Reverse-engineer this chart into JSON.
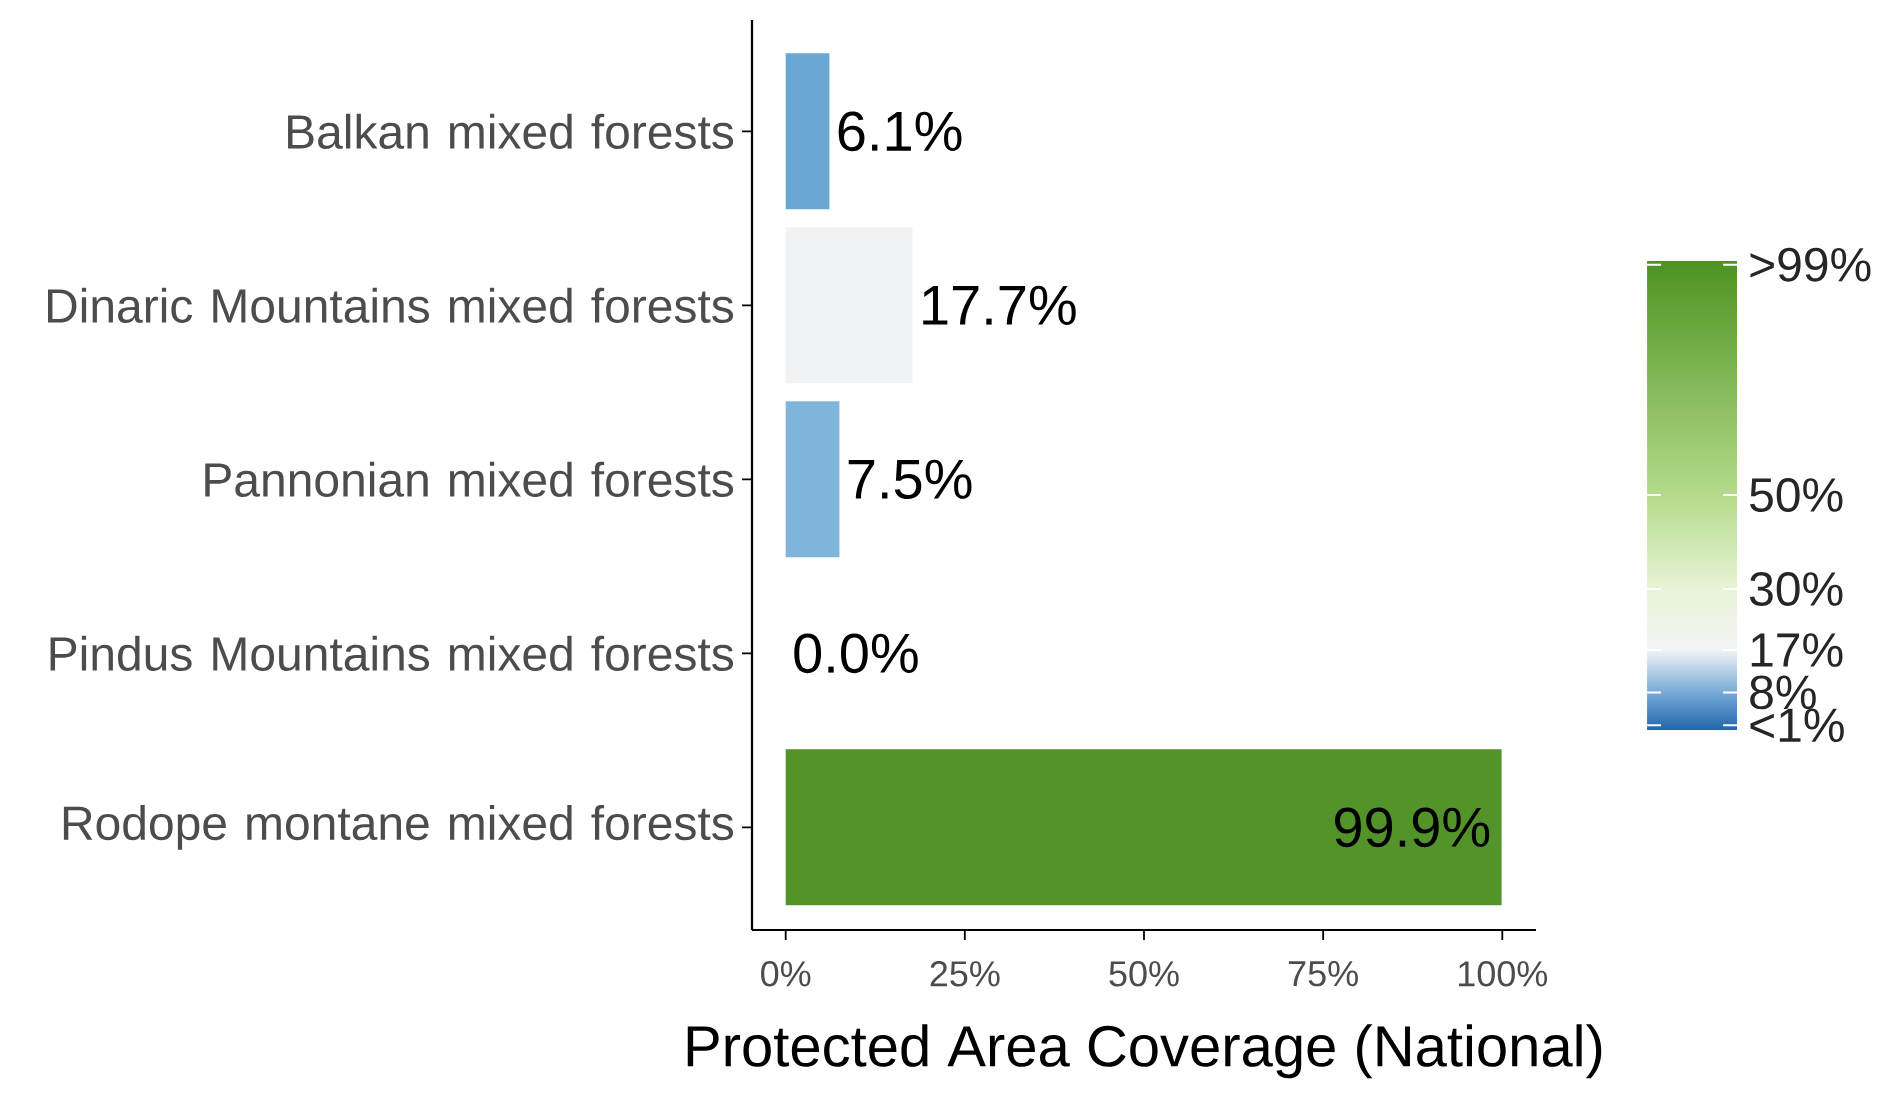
{
  "chart_data": {
    "type": "bar",
    "orientation": "horizontal",
    "xlabel": "Protected Area Coverage (National)",
    "categories": [
      "Balkan mixed forests",
      "Dinaric Mountains mixed forests",
      "Pannonian mixed forests",
      "Pindus Mountains mixed forests",
      "Rodope montane mixed forests"
    ],
    "values": [
      6.1,
      17.7,
      7.5,
      0.0,
      99.9
    ],
    "value_labels": [
      "6.1%",
      "17.7%",
      "7.5%",
      "0.0%",
      "99.9%"
    ],
    "colors": [
      "#68a7d3",
      "#f1f2f4",
      "#80b5db",
      "#2166ac",
      "#529429"
    ],
    "xlim": [
      -4.7,
      104.7
    ],
    "xticks": [
      {
        "value": 0,
        "label": "0%"
      },
      {
        "value": 25,
        "label": "25%"
      },
      {
        "value": 50,
        "label": "50%"
      },
      {
        "value": 75,
        "label": "75%"
      },
      {
        "value": 100,
        "label": "100%"
      }
    ],
    "clim": [
      0,
      100
    ],
    "cticks": [
      {
        "value": 1,
        "label": "<1%"
      },
      {
        "value": 8,
        "label": "8%"
      },
      {
        "value": 17,
        "label": "17%"
      },
      {
        "value": 30,
        "label": "30%"
      },
      {
        "value": 50,
        "label": "50%"
      },
      {
        "value": 99,
        "label": ">99%"
      }
    ],
    "grid": false
  }
}
